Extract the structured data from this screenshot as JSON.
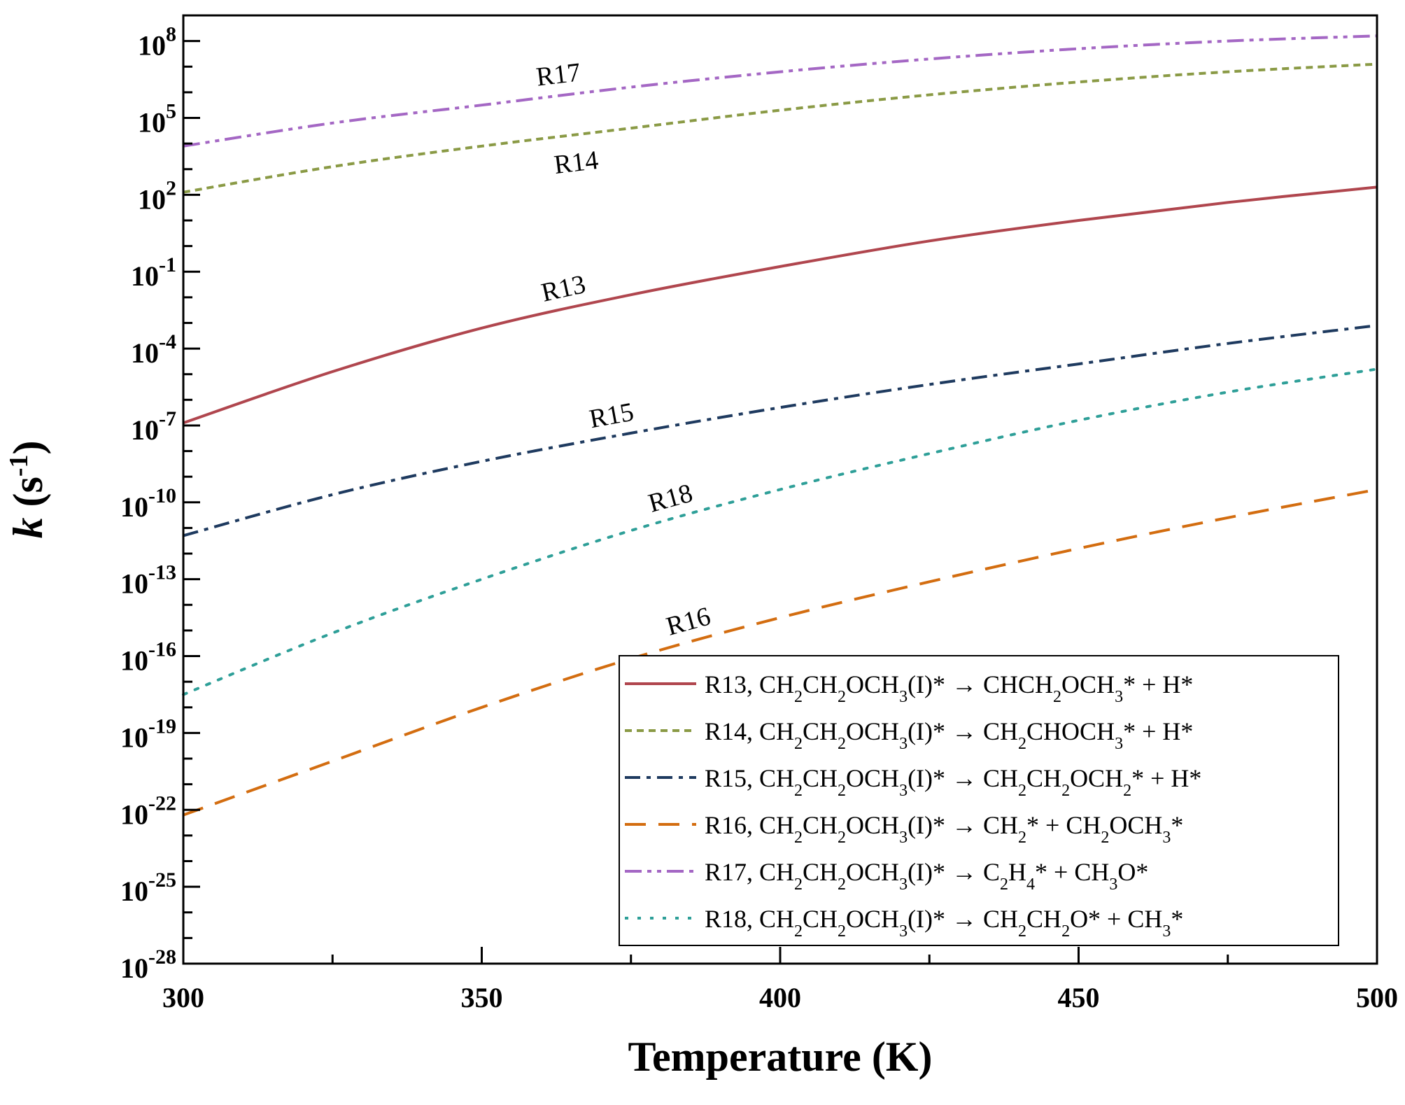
{
  "chart_data": {
    "type": "line",
    "xlabel": "Temperature (K)",
    "ylabel": {
      "base": "k",
      "unit_open": " (s",
      "unit_exp": "-1",
      "unit_close": ")"
    },
    "xlim": [
      300,
      500
    ],
    "ylim_log10": [
      -28,
      9
    ],
    "yscale": "log",
    "x_ticks": [
      300,
      350,
      400,
      450,
      500
    ],
    "y_tick_exponents": [
      8,
      5,
      2,
      -1,
      -4,
      -7,
      -10,
      -13,
      -16,
      -19,
      -22,
      -25,
      -28
    ],
    "y_tick_labels": [
      {
        "base": "10",
        "exp": "8"
      },
      {
        "base": "10",
        "exp": "5"
      },
      {
        "base": "10",
        "exp": "2"
      },
      {
        "base": "10",
        "exp": "-1"
      },
      {
        "base": "10",
        "exp": "-4"
      },
      {
        "base": "10",
        "exp": "-7"
      },
      {
        "base": "10",
        "exp": "-10"
      },
      {
        "base": "10",
        "exp": "-13"
      },
      {
        "base": "10",
        "exp": "-16"
      },
      {
        "base": "10",
        "exp": "-19"
      },
      {
        "base": "10",
        "exp": "-22"
      },
      {
        "base": "10",
        "exp": "-25"
      },
      {
        "base": "10",
        "exp": "-28"
      }
    ],
    "grid": false,
    "legend_position": "bottom-right",
    "series": [
      {
        "name": "R13",
        "color": "#b0464e",
        "dash": "solid",
        "curve_label": "R13",
        "x": [
          300,
          325,
          350,
          375,
          400,
          425,
          450,
          475,
          500
        ],
        "log10_k": [
          -6.9,
          -4.9,
          -3.2,
          -1.9,
          -0.8,
          0.2,
          1.0,
          1.7,
          2.3
        ]
      },
      {
        "name": "R14",
        "color": "#8a9a45",
        "dash": "short-dash",
        "curve_label": "R14",
        "x": [
          300,
          325,
          350,
          375,
          400,
          425,
          450,
          475,
          500
        ],
        "log10_k": [
          2.1,
          3.1,
          3.9,
          4.6,
          5.3,
          5.9,
          6.4,
          6.8,
          7.1
        ]
      },
      {
        "name": "R15",
        "color": "#1e3a5f",
        "dash": "dash-dot",
        "curve_label": "R15",
        "x": [
          300,
          325,
          350,
          375,
          400,
          425,
          450,
          475,
          500
        ],
        "log10_k": [
          -11.3,
          -9.7,
          -8.4,
          -7.3,
          -6.3,
          -5.4,
          -4.6,
          -3.8,
          -3.1
        ]
      },
      {
        "name": "R16",
        "color": "#d36d10",
        "dash": "long-dash",
        "curve_label": "R16",
        "x": [
          300,
          325,
          350,
          375,
          400,
          425,
          450,
          475,
          500
        ],
        "log10_k": [
          -22.2,
          -20.1,
          -18.0,
          -16.1,
          -14.5,
          -13.1,
          -11.8,
          -10.6,
          -9.5
        ]
      },
      {
        "name": "R17",
        "color": "#a467c4",
        "dash": "dash-dot-dot",
        "curve_label": "R17",
        "x": [
          300,
          325,
          350,
          375,
          400,
          425,
          450,
          475,
          500
        ],
        "log10_k": [
          3.9,
          4.8,
          5.5,
          6.2,
          6.8,
          7.3,
          7.7,
          8.0,
          8.2
        ]
      },
      {
        "name": "R18",
        "color": "#2e9f98",
        "dash": "dotted",
        "curve_label": "R18",
        "x": [
          300,
          325,
          350,
          375,
          400,
          425,
          450,
          475,
          500
        ],
        "log10_k": [
          -17.5,
          -15.1,
          -13.0,
          -11.1,
          -9.5,
          -8.1,
          -6.8,
          -5.7,
          -4.8
        ]
      }
    ],
    "legend": [
      {
        "series": 0,
        "parts": [
          [
            "R13, CH",
            ""
          ],
          [
            "2",
            "sub"
          ],
          [
            "CH",
            ""
          ],
          [
            "2",
            "sub"
          ],
          [
            "OCH",
            ""
          ],
          [
            "3",
            "sub"
          ],
          [
            "(I)* → CHCH",
            ""
          ],
          [
            "2",
            "sub"
          ],
          [
            "OCH",
            ""
          ],
          [
            "3",
            "sub"
          ],
          [
            "* + H*",
            ""
          ]
        ]
      },
      {
        "series": 1,
        "parts": [
          [
            "R14, CH",
            ""
          ],
          [
            "2",
            "sub"
          ],
          [
            "CH",
            ""
          ],
          [
            "2",
            "sub"
          ],
          [
            "OCH",
            ""
          ],
          [
            "3",
            "sub"
          ],
          [
            "(I)* → CH",
            ""
          ],
          [
            "2",
            "sub"
          ],
          [
            "CHOCH",
            ""
          ],
          [
            "3",
            "sub"
          ],
          [
            "* + H*",
            ""
          ]
        ]
      },
      {
        "series": 2,
        "parts": [
          [
            "R15, CH",
            ""
          ],
          [
            "2",
            "sub"
          ],
          [
            "CH",
            ""
          ],
          [
            "2",
            "sub"
          ],
          [
            "OCH",
            ""
          ],
          [
            "3",
            "sub"
          ],
          [
            "(I)* → CH",
            ""
          ],
          [
            "2",
            "sub"
          ],
          [
            "CH",
            ""
          ],
          [
            "2",
            "sub"
          ],
          [
            "OCH",
            ""
          ],
          [
            "2",
            "sub"
          ],
          [
            "* + H*",
            ""
          ]
        ]
      },
      {
        "series": 3,
        "parts": [
          [
            "R16, CH",
            ""
          ],
          [
            "2",
            "sub"
          ],
          [
            "CH",
            ""
          ],
          [
            "2",
            "sub"
          ],
          [
            "OCH",
            ""
          ],
          [
            "3",
            "sub"
          ],
          [
            "(I)* → CH",
            ""
          ],
          [
            "2",
            "sub"
          ],
          [
            "* + CH",
            ""
          ],
          [
            "2",
            "sub"
          ],
          [
            "OCH",
            ""
          ],
          [
            "3",
            "sub"
          ],
          [
            "*",
            ""
          ]
        ]
      },
      {
        "series": 4,
        "parts": [
          [
            "R17, CH",
            ""
          ],
          [
            "2",
            "sub"
          ],
          [
            "CH",
            ""
          ],
          [
            "2",
            "sub"
          ],
          [
            "OCH",
            ""
          ],
          [
            "3",
            "sub"
          ],
          [
            "(I)* → C",
            ""
          ],
          [
            "2",
            "sub"
          ],
          [
            "H",
            ""
          ],
          [
            "4",
            "sub"
          ],
          [
            "* + CH",
            ""
          ],
          [
            "3",
            "sub"
          ],
          [
            "O*",
            ""
          ]
        ]
      },
      {
        "series": 5,
        "parts": [
          [
            "R18, CH",
            ""
          ],
          [
            "2",
            "sub"
          ],
          [
            "CH",
            ""
          ],
          [
            "2",
            "sub"
          ],
          [
            "OCH",
            ""
          ],
          [
            "3",
            "sub"
          ],
          [
            "(I)* → CH",
            ""
          ],
          [
            "2",
            "sub"
          ],
          [
            "CH",
            ""
          ],
          [
            "2",
            "sub"
          ],
          [
            "O* + CH",
            ""
          ],
          [
            "3",
            "sub"
          ],
          [
            "*",
            ""
          ]
        ]
      }
    ],
    "curve_label_positions": [
      {
        "series": 0,
        "x": 364,
        "above": true
      },
      {
        "series": 1,
        "x": 366,
        "above": false
      },
      {
        "series": 2,
        "x": 372,
        "above": true
      },
      {
        "series": 3,
        "x": 385,
        "above": true
      },
      {
        "series": 4,
        "x": 363,
        "above": true
      },
      {
        "series": 5,
        "x": 382,
        "above": true
      }
    ]
  }
}
